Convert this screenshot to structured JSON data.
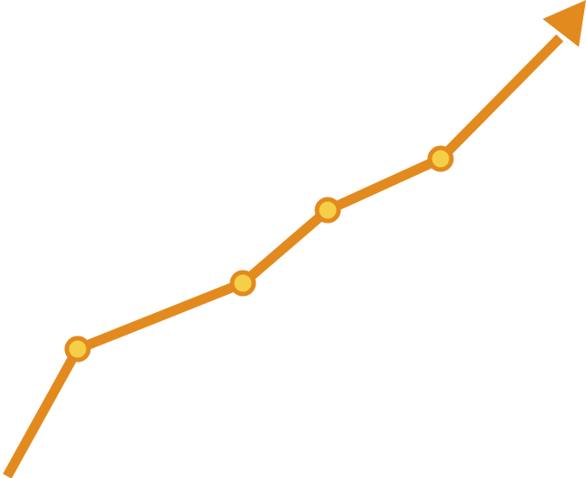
{
  "graphic": {
    "kind": "upward-trend-arrow",
    "marker_count": 4,
    "colors": {
      "line": "#E38A1E",
      "arrowhead": "#E38A1E",
      "marker_fill": "#F5CF48",
      "marker_stroke": "#E38A1E",
      "background": "#FFFFFF"
    }
  }
}
